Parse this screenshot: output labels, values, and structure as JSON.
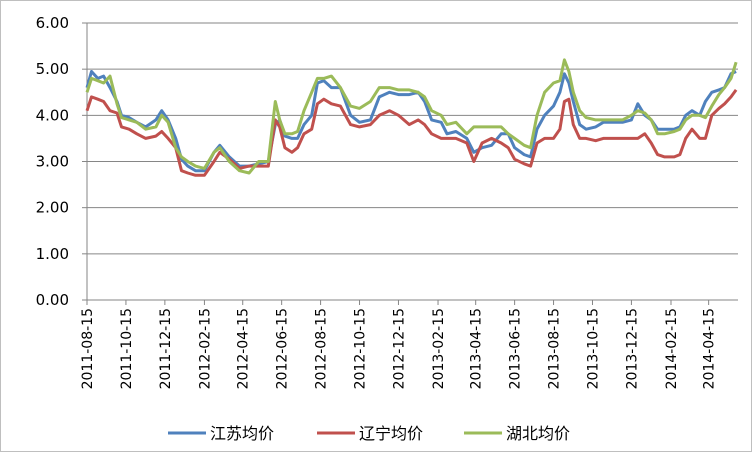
{
  "chart_data": {
    "type": "line",
    "title": "",
    "xlabel": "",
    "ylabel": "",
    "ylim": [
      0,
      6
    ],
    "yticks": [
      "0.00",
      "1.00",
      "2.00",
      "3.00",
      "4.00",
      "5.00",
      "6.00"
    ],
    "x_range": [
      "2011-08-15",
      "2014-05-31"
    ],
    "xticks": [
      "2011-08-15",
      "2011-10-15",
      "2011-12-15",
      "2012-02-15",
      "2012-04-15",
      "2012-06-15",
      "2012-08-15",
      "2012-10-15",
      "2012-12-15",
      "2013-02-15",
      "2013-04-15",
      "2013-06-15",
      "2013-08-15",
      "2013-10-15",
      "2013-12-15",
      "2014-02-15",
      "2014-04-15"
    ],
    "grid": "horizontal",
    "legend_position": "bottom",
    "series": [
      {
        "name": "江苏均价",
        "color": "#4f81bd",
        "points": [
          [
            "2011-08-15",
            4.6
          ],
          [
            "2011-08-22",
            4.95
          ],
          [
            "2011-09-01",
            4.8
          ],
          [
            "2011-09-10",
            4.85
          ],
          [
            "2011-09-20",
            4.6
          ],
          [
            "2011-10-01",
            4.3
          ],
          [
            "2011-10-08",
            4.0
          ],
          [
            "2011-10-20",
            3.95
          ],
          [
            "2011-11-01",
            3.85
          ],
          [
            "2011-11-15",
            3.75
          ],
          [
            "2011-12-01",
            3.9
          ],
          [
            "2011-12-10",
            4.1
          ],
          [
            "2011-12-20",
            3.9
          ],
          [
            "2012-01-01",
            3.5
          ],
          [
            "2012-01-10",
            3.05
          ],
          [
            "2012-01-20",
            2.9
          ],
          [
            "2012-02-01",
            2.8
          ],
          [
            "2012-02-15",
            2.8
          ],
          [
            "2012-03-01",
            3.2
          ],
          [
            "2012-03-10",
            3.35
          ],
          [
            "2012-03-25",
            3.1
          ],
          [
            "2012-04-10",
            2.9
          ],
          [
            "2012-04-25",
            2.9
          ],
          [
            "2012-05-10",
            2.95
          ],
          [
            "2012-05-25",
            3.0
          ],
          [
            "2012-06-05",
            3.8
          ],
          [
            "2012-06-12",
            3.9
          ],
          [
            "2012-06-20",
            3.55
          ],
          [
            "2012-07-01",
            3.5
          ],
          [
            "2012-07-10",
            3.5
          ],
          [
            "2012-07-20",
            3.8
          ],
          [
            "2012-08-01",
            4.0
          ],
          [
            "2012-08-10",
            4.7
          ],
          [
            "2012-08-20",
            4.75
          ],
          [
            "2012-09-01",
            4.6
          ],
          [
            "2012-09-15",
            4.6
          ],
          [
            "2012-10-01",
            4.0
          ],
          [
            "2012-10-15",
            3.85
          ],
          [
            "2012-11-01",
            3.9
          ],
          [
            "2012-11-15",
            4.4
          ],
          [
            "2012-12-01",
            4.5
          ],
          [
            "2012-12-15",
            4.45
          ],
          [
            "2013-01-01",
            4.45
          ],
          [
            "2013-01-15",
            4.5
          ],
          [
            "2013-01-25",
            4.3
          ],
          [
            "2013-02-05",
            3.9
          ],
          [
            "2013-02-20",
            3.85
          ],
          [
            "2013-03-01",
            3.6
          ],
          [
            "2013-03-15",
            3.65
          ],
          [
            "2013-04-01",
            3.5
          ],
          [
            "2013-04-12",
            3.2
          ],
          [
            "2013-04-25",
            3.3
          ],
          [
            "2013-05-10",
            3.35
          ],
          [
            "2013-05-25",
            3.6
          ],
          [
            "2013-06-05",
            3.6
          ],
          [
            "2013-06-15",
            3.3
          ],
          [
            "2013-06-30",
            3.15
          ],
          [
            "2013-07-10",
            3.1
          ],
          [
            "2013-07-20",
            3.7
          ],
          [
            "2013-08-01",
            4.0
          ],
          [
            "2013-08-15",
            4.2
          ],
          [
            "2013-08-25",
            4.5
          ],
          [
            "2013-09-01",
            4.9
          ],
          [
            "2013-09-08",
            4.7
          ],
          [
            "2013-09-15",
            4.3
          ],
          [
            "2013-09-25",
            3.8
          ],
          [
            "2013-10-05",
            3.7
          ],
          [
            "2013-10-20",
            3.75
          ],
          [
            "2013-11-01",
            3.85
          ],
          [
            "2013-11-15",
            3.85
          ],
          [
            "2013-12-01",
            3.85
          ],
          [
            "2013-12-15",
            3.9
          ],
          [
            "2013-12-25",
            4.25
          ],
          [
            "2014-01-05",
            4.0
          ],
          [
            "2014-01-15",
            3.9
          ],
          [
            "2014-01-25",
            3.7
          ],
          [
            "2014-02-05",
            3.7
          ],
          [
            "2014-02-20",
            3.7
          ],
          [
            "2014-03-01",
            3.75
          ],
          [
            "2014-03-10",
            4.0
          ],
          [
            "2014-03-20",
            4.1
          ],
          [
            "2014-04-01",
            4.0
          ],
          [
            "2014-04-10",
            4.3
          ],
          [
            "2014-04-20",
            4.5
          ],
          [
            "2014-05-01",
            4.55
          ],
          [
            "2014-05-10",
            4.6
          ],
          [
            "2014-05-20",
            4.9
          ],
          [
            "2014-05-28",
            4.95
          ]
        ]
      },
      {
        "name": "辽宁均价",
        "color": "#c0504d",
        "points": [
          [
            "2011-08-15",
            4.1
          ],
          [
            "2011-08-22",
            4.4
          ],
          [
            "2011-09-01",
            4.35
          ],
          [
            "2011-09-10",
            4.3
          ],
          [
            "2011-09-20",
            4.1
          ],
          [
            "2011-10-01",
            4.05
          ],
          [
            "2011-10-08",
            3.75
          ],
          [
            "2011-10-20",
            3.7
          ],
          [
            "2011-11-01",
            3.6
          ],
          [
            "2011-11-15",
            3.5
          ],
          [
            "2011-12-01",
            3.55
          ],
          [
            "2011-12-10",
            3.65
          ],
          [
            "2011-12-20",
            3.5
          ],
          [
            "2012-01-01",
            3.3
          ],
          [
            "2012-01-10",
            2.8
          ],
          [
            "2012-01-20",
            2.75
          ],
          [
            "2012-02-01",
            2.7
          ],
          [
            "2012-02-15",
            2.7
          ],
          [
            "2012-03-01",
            3.0
          ],
          [
            "2012-03-10",
            3.2
          ],
          [
            "2012-03-25",
            3.05
          ],
          [
            "2012-04-10",
            2.85
          ],
          [
            "2012-04-25",
            2.9
          ],
          [
            "2012-05-10",
            2.9
          ],
          [
            "2012-05-25",
            2.9
          ],
          [
            "2012-06-05",
            3.9
          ],
          [
            "2012-06-12",
            3.75
          ],
          [
            "2012-06-20",
            3.3
          ],
          [
            "2012-07-01",
            3.2
          ],
          [
            "2012-07-10",
            3.3
          ],
          [
            "2012-07-20",
            3.6
          ],
          [
            "2012-08-01",
            3.7
          ],
          [
            "2012-08-10",
            4.25
          ],
          [
            "2012-08-20",
            4.35
          ],
          [
            "2012-09-01",
            4.25
          ],
          [
            "2012-09-15",
            4.2
          ],
          [
            "2012-10-01",
            3.8
          ],
          [
            "2012-10-15",
            3.75
          ],
          [
            "2012-11-01",
            3.8
          ],
          [
            "2012-11-15",
            4.0
          ],
          [
            "2012-12-01",
            4.1
          ],
          [
            "2012-12-15",
            4.0
          ],
          [
            "2013-01-01",
            3.8
          ],
          [
            "2013-01-15",
            3.9
          ],
          [
            "2013-01-25",
            3.8
          ],
          [
            "2013-02-05",
            3.6
          ],
          [
            "2013-02-20",
            3.5
          ],
          [
            "2013-03-01",
            3.5
          ],
          [
            "2013-03-15",
            3.5
          ],
          [
            "2013-04-01",
            3.4
          ],
          [
            "2013-04-12",
            3.0
          ],
          [
            "2013-04-25",
            3.4
          ],
          [
            "2013-05-10",
            3.5
          ],
          [
            "2013-05-25",
            3.4
          ],
          [
            "2013-06-05",
            3.3
          ],
          [
            "2013-06-15",
            3.05
          ],
          [
            "2013-06-30",
            2.95
          ],
          [
            "2013-07-10",
            2.9
          ],
          [
            "2013-07-20",
            3.4
          ],
          [
            "2013-08-01",
            3.5
          ],
          [
            "2013-08-15",
            3.5
          ],
          [
            "2013-08-25",
            3.7
          ],
          [
            "2013-09-01",
            4.3
          ],
          [
            "2013-09-08",
            4.35
          ],
          [
            "2013-09-15",
            3.8
          ],
          [
            "2013-09-25",
            3.5
          ],
          [
            "2013-10-05",
            3.5
          ],
          [
            "2013-10-20",
            3.45
          ],
          [
            "2013-11-01",
            3.5
          ],
          [
            "2013-11-15",
            3.5
          ],
          [
            "2013-12-01",
            3.5
          ],
          [
            "2013-12-15",
            3.5
          ],
          [
            "2013-12-25",
            3.5
          ],
          [
            "2014-01-05",
            3.6
          ],
          [
            "2014-01-15",
            3.4
          ],
          [
            "2014-01-25",
            3.15
          ],
          [
            "2014-02-05",
            3.1
          ],
          [
            "2014-02-20",
            3.1
          ],
          [
            "2014-03-01",
            3.15
          ],
          [
            "2014-03-10",
            3.5
          ],
          [
            "2014-03-20",
            3.7
          ],
          [
            "2014-04-01",
            3.5
          ],
          [
            "2014-04-10",
            3.5
          ],
          [
            "2014-04-20",
            4.0
          ],
          [
            "2014-05-01",
            4.15
          ],
          [
            "2014-05-10",
            4.25
          ],
          [
            "2014-05-20",
            4.4
          ],
          [
            "2014-05-28",
            4.55
          ]
        ]
      },
      {
        "name": "湖北均价",
        "color": "#9bbb59",
        "points": [
          [
            "2011-08-15",
            4.5
          ],
          [
            "2011-08-22",
            4.8
          ],
          [
            "2011-09-01",
            4.75
          ],
          [
            "2011-09-10",
            4.7
          ],
          [
            "2011-09-20",
            4.85
          ],
          [
            "2011-10-01",
            4.25
          ],
          [
            "2011-10-08",
            3.95
          ],
          [
            "2011-10-20",
            3.9
          ],
          [
            "2011-11-01",
            3.85
          ],
          [
            "2011-11-15",
            3.7
          ],
          [
            "2011-12-01",
            3.75
          ],
          [
            "2011-12-10",
            4.0
          ],
          [
            "2011-12-20",
            3.85
          ],
          [
            "2012-01-01",
            3.3
          ],
          [
            "2012-01-10",
            3.1
          ],
          [
            "2012-01-20",
            3.0
          ],
          [
            "2012-02-01",
            2.9
          ],
          [
            "2012-02-15",
            2.85
          ],
          [
            "2012-03-01",
            3.2
          ],
          [
            "2012-03-10",
            3.3
          ],
          [
            "2012-03-25",
            3.0
          ],
          [
            "2012-04-10",
            2.8
          ],
          [
            "2012-04-25",
            2.75
          ],
          [
            "2012-05-10",
            3.0
          ],
          [
            "2012-05-25",
            3.0
          ],
          [
            "2012-06-05",
            4.3
          ],
          [
            "2012-06-12",
            3.9
          ],
          [
            "2012-06-20",
            3.6
          ],
          [
            "2012-07-01",
            3.6
          ],
          [
            "2012-07-10",
            3.65
          ],
          [
            "2012-07-20",
            4.1
          ],
          [
            "2012-08-01",
            4.5
          ],
          [
            "2012-08-10",
            4.8
          ],
          [
            "2012-08-20",
            4.8
          ],
          [
            "2012-09-01",
            4.85
          ],
          [
            "2012-09-15",
            4.6
          ],
          [
            "2012-10-01",
            4.2
          ],
          [
            "2012-10-15",
            4.15
          ],
          [
            "2012-11-01",
            4.3
          ],
          [
            "2012-11-15",
            4.6
          ],
          [
            "2012-12-01",
            4.6
          ],
          [
            "2012-12-15",
            4.55
          ],
          [
            "2013-01-01",
            4.55
          ],
          [
            "2013-01-15",
            4.5
          ],
          [
            "2013-01-25",
            4.4
          ],
          [
            "2013-02-05",
            4.1
          ],
          [
            "2013-02-20",
            4.0
          ],
          [
            "2013-03-01",
            3.8
          ],
          [
            "2013-03-15",
            3.85
          ],
          [
            "2013-04-01",
            3.6
          ],
          [
            "2013-04-12",
            3.75
          ],
          [
            "2013-04-25",
            3.75
          ],
          [
            "2013-05-10",
            3.75
          ],
          [
            "2013-05-25",
            3.75
          ],
          [
            "2013-06-05",
            3.6
          ],
          [
            "2013-06-15",
            3.5
          ],
          [
            "2013-06-30",
            3.35
          ],
          [
            "2013-07-10",
            3.3
          ],
          [
            "2013-07-20",
            4.0
          ],
          [
            "2013-08-01",
            4.5
          ],
          [
            "2013-08-15",
            4.7
          ],
          [
            "2013-08-25",
            4.75
          ],
          [
            "2013-09-01",
            5.2
          ],
          [
            "2013-09-08",
            4.95
          ],
          [
            "2013-09-15",
            4.5
          ],
          [
            "2013-09-25",
            4.1
          ],
          [
            "2013-10-05",
            3.95
          ],
          [
            "2013-10-20",
            3.9
          ],
          [
            "2013-11-01",
            3.9
          ],
          [
            "2013-11-15",
            3.9
          ],
          [
            "2013-12-01",
            3.9
          ],
          [
            "2013-12-15",
            4.0
          ],
          [
            "2013-12-25",
            4.1
          ],
          [
            "2014-01-05",
            4.05
          ],
          [
            "2014-01-15",
            3.9
          ],
          [
            "2014-01-25",
            3.6
          ],
          [
            "2014-02-05",
            3.6
          ],
          [
            "2014-02-20",
            3.65
          ],
          [
            "2014-03-01",
            3.7
          ],
          [
            "2014-03-10",
            3.9
          ],
          [
            "2014-03-20",
            4.0
          ],
          [
            "2014-04-01",
            4.0
          ],
          [
            "2014-04-10",
            3.95
          ],
          [
            "2014-04-20",
            4.2
          ],
          [
            "2014-05-01",
            4.45
          ],
          [
            "2014-05-10",
            4.6
          ],
          [
            "2014-05-20",
            4.8
          ],
          [
            "2014-05-28",
            5.15
          ]
        ]
      }
    ]
  }
}
